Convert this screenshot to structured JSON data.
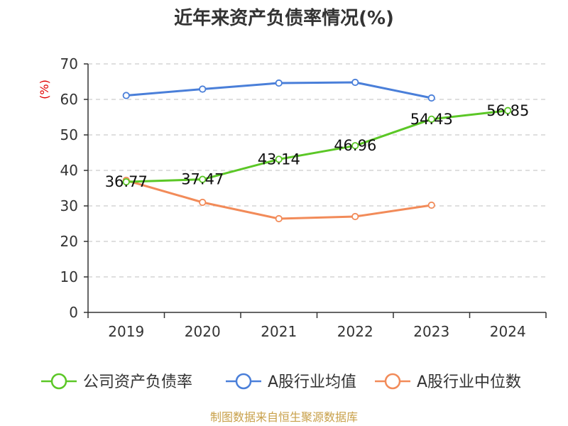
{
  "chart_data": {
    "type": "line",
    "title": "近年来资产负债率情况(%)",
    "ylabel": "(%)",
    "xlabel": "",
    "categories": [
      "2019",
      "2020",
      "2021",
      "2022",
      "2023",
      "2024"
    ],
    "ylim": [
      0,
      70
    ],
    "yticks": [
      0,
      10,
      20,
      30,
      40,
      50,
      60,
      70
    ],
    "grid": true,
    "legend_position": "bottom",
    "series": [
      {
        "name": "公司资产负债率",
        "color": "#5bc726",
        "values": [
          36.77,
          37.47,
          43.14,
          46.96,
          54.43,
          56.85
        ],
        "labels": [
          "36.77",
          "37.47",
          "43.14",
          "46.96",
          "54.43",
          "56.85"
        ]
      },
      {
        "name": "A股行业均值",
        "color": "#4a7fd9",
        "values": [
          61.1,
          62.9,
          64.6,
          64.8,
          60.4,
          null
        ]
      },
      {
        "name": "A股行业中位数",
        "color": "#f28b59",
        "values": [
          37.2,
          31.0,
          26.4,
          27.0,
          30.2,
          null
        ]
      }
    ]
  },
  "source": "制图数据来自恒生聚源数据库"
}
